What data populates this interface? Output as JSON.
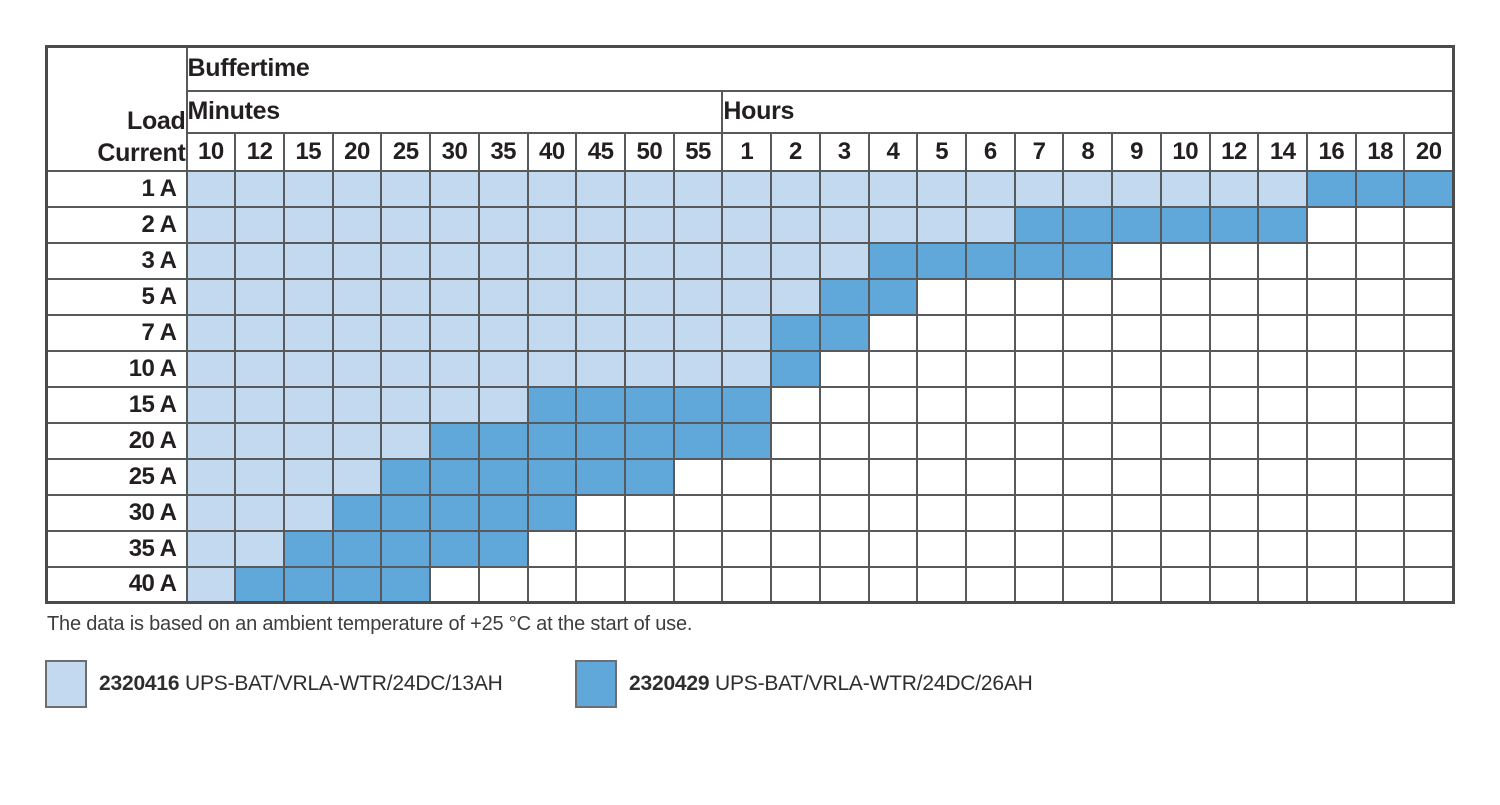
{
  "header": {
    "buffertime": "Buffertime",
    "minutes": "Minutes",
    "hours": "Hours",
    "load": "Load",
    "current": "Current"
  },
  "chart_data": {
    "type": "heatmap",
    "title": "Buffertime",
    "ylabel": "Load Current",
    "col_groups": [
      {
        "label": "Minutes",
        "cols": [
          "10",
          "12",
          "15",
          "20",
          "25",
          "30",
          "35",
          "40",
          "45",
          "50",
          "55"
        ]
      },
      {
        "label": "Hours",
        "cols": [
          "1",
          "2",
          "3",
          "4",
          "5",
          "6",
          "7",
          "8",
          "9",
          "10",
          "12",
          "14",
          "16",
          "18",
          "20"
        ]
      }
    ],
    "rows": [
      {
        "label": "1 A",
        "cells": "LLLLLLLLLLLLLLLLLLLLLLLDDD"
      },
      {
        "label": "2 A",
        "cells": "LLLLLLLLLLLLLLLLLDDDDDDWWW"
      },
      {
        "label": "3 A",
        "cells": "LLLLLLLLLLLLLLDDDDDWWWWWWW"
      },
      {
        "label": "5 A",
        "cells": "LLLLLLLLLLLLLDDWWWWWWWWWWW"
      },
      {
        "label": "7 A",
        "cells": "LLLLLLLLLLLLDDWWWWWWWWWWWW"
      },
      {
        "label": "10 A",
        "cells": "LLLLLLLLLLLLDWWWWWWWWWWWWW"
      },
      {
        "label": "15 A",
        "cells": "LLLLLLLDDDDDWWWWWWWWWWWWWW"
      },
      {
        "label": "20 A",
        "cells": "LLLLLDDDDDDDWWWWWWWWWWWWWW"
      },
      {
        "label": "25 A",
        "cells": "LLLLDDDDDDWWWWWWWWWWWWWWWW"
      },
      {
        "label": "30 A",
        "cells": "LLLDDDDDWWWWWWWWWWWWWWWWWW"
      },
      {
        "label": "35 A",
        "cells": "LLDDDDDWWWWWWWWWWWWWWWWWWW"
      },
      {
        "label": "40 A",
        "cells": "LDDDDWWWWWWWWWWWWWWWWWWWWW"
      }
    ],
    "cell_state_colors": {
      "L": "#c3d9f0",
      "D": "#61a8da",
      "W": "#ffffff"
    },
    "cell_state_legend": {
      "L": "2320416 UPS-BAT/VRLA-WTR/24DC/13AH",
      "D": "2320429 UPS-BAT/VRLA-WTR/24DC/26AH",
      "W": ""
    },
    "grid": true,
    "legend_position": "bottom"
  },
  "footer_note": "The data is based on an ambient temperature of +25 °C at the start of use.",
  "legend": [
    {
      "code": "2320416",
      "description": "UPS-BAT/VRLA-WTR/24DC/13AH",
      "color": "#c3d9f0"
    },
    {
      "code": "2320429",
      "description": "UPS-BAT/VRLA-WTR/24DC/26AH",
      "color": "#61a8da"
    }
  ],
  "colors": {
    "battery_13ah": "#c3d9f0",
    "battery_26ah": "#61a8da",
    "grid_line": "#58595b",
    "text": "#231f20"
  }
}
